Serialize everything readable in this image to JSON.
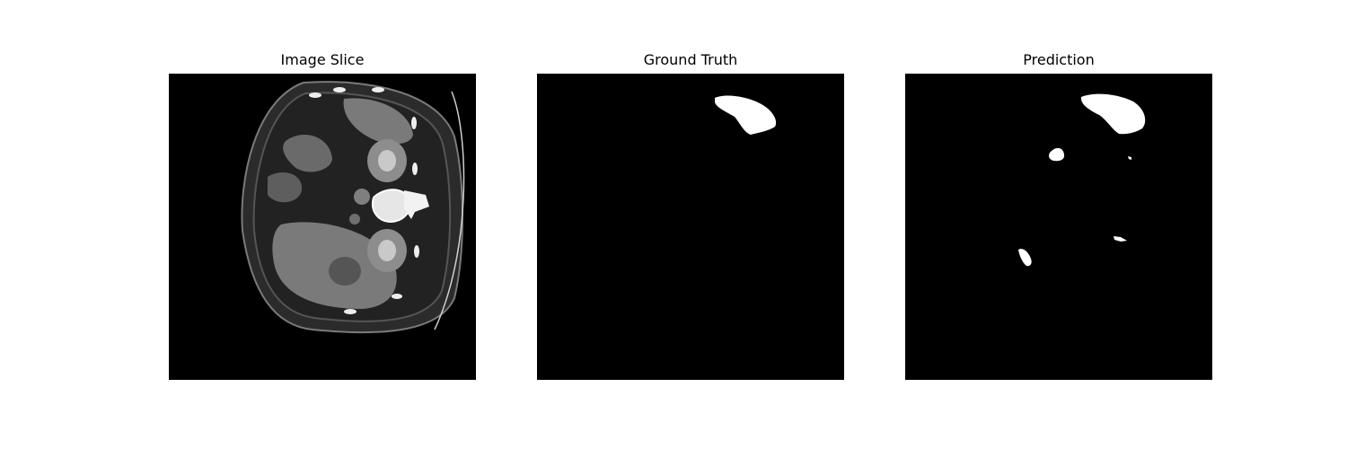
{
  "figure": {
    "panels": [
      {
        "title": "Image Slice"
      },
      {
        "title": "Ground Truth"
      },
      {
        "title": "Prediction"
      }
    ]
  }
}
